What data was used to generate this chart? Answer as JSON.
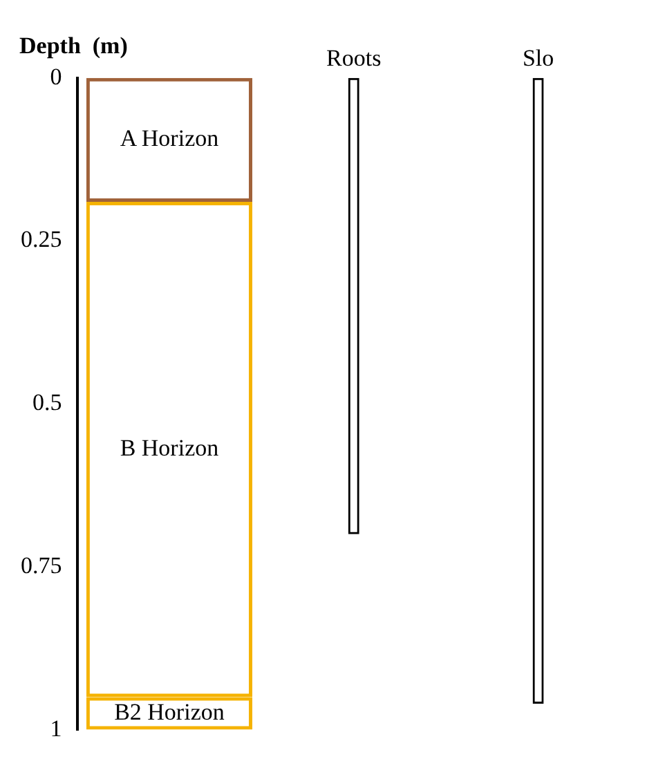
{
  "chart_data": {
    "type": "bar",
    "stacked": true,
    "ylabel": "Depth  (m)",
    "categories": [
      null,
      "Roots",
      "Slo"
    ],
    "series": [
      {
        "name": "A Horizon",
        "color": "#a0623a",
        "values": [
          0.19,
          null,
          null
        ]
      },
      {
        "name": "B Horizon",
        "color": "#f5b301",
        "values": [
          0.76,
          null,
          null
        ]
      },
      {
        "name": "B2 Horizon",
        "color": "#f5b301",
        "values": [
          0.05,
          null,
          null
        ]
      },
      {
        "color": "#000000",
        "values": [
          null,
          0.7,
          0.96
        ]
      }
    ],
    "ylim": [
      1,
      0
    ],
    "yticks": [
      0,
      0.25,
      0.5,
      0.75,
      1
    ],
    "grid": false,
    "legend": false
  }
}
